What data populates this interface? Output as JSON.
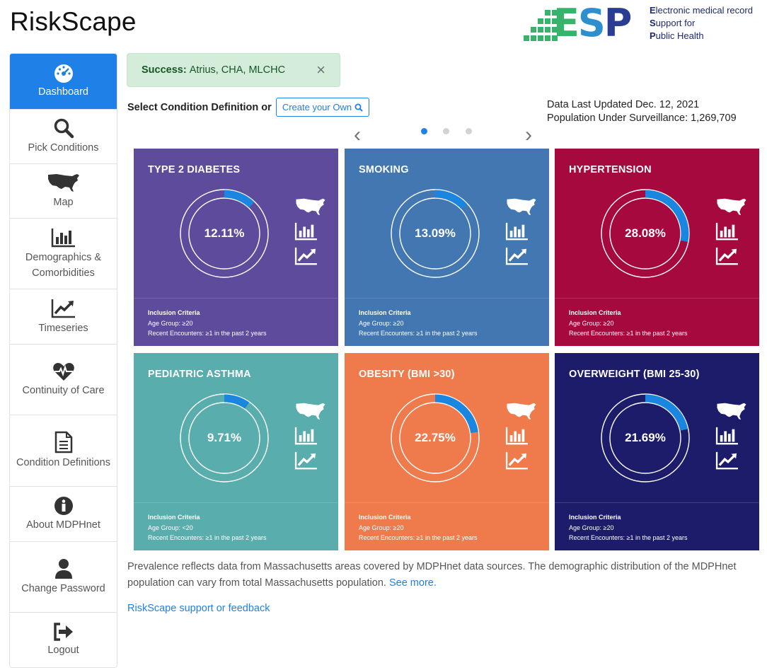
{
  "header": {
    "app_title": "RiskScape",
    "logo": {
      "letters": "ESP",
      "line1_initial": "E",
      "line1_rest": "lectronic medical record",
      "line2_initial": "S",
      "line2_rest": "upport for",
      "line3_initial": "P",
      "line3_rest": "ublic Health"
    }
  },
  "sidebar": {
    "items": [
      {
        "label": "Dashboard",
        "icon": "gauge-icon",
        "active": true
      },
      {
        "label": "Pick Conditions",
        "icon": "search-icon",
        "active": false
      },
      {
        "label": "Map",
        "icon": "usa-map-icon",
        "active": false
      },
      {
        "label": "Demographics & Comorbidities",
        "icon": "bar-chart-icon",
        "active": false
      },
      {
        "label": "Timeseries",
        "icon": "line-chart-icon",
        "active": false
      },
      {
        "label": "Continuity of Care",
        "icon": "heartbeat-icon",
        "active": false
      },
      {
        "label": "Condition Definitions",
        "icon": "document-icon",
        "active": false
      },
      {
        "label": "About MDPHnet",
        "icon": "info-icon",
        "active": false
      },
      {
        "label": "Change Password",
        "icon": "user-icon",
        "active": false
      },
      {
        "label": "Logout",
        "icon": "logout-icon",
        "active": false
      }
    ]
  },
  "alert": {
    "strong": "Success:",
    "text": "Atrius, CHA, MLCHC",
    "close": "×"
  },
  "select_row": {
    "label": "Select Condition Definition or",
    "button": "Create your Own"
  },
  "data_info": {
    "updated": "Data Last Updated Dec. 12, 2021",
    "population": "Population Under Surveillance: 1,269,709"
  },
  "carousel": {
    "current_page": 1,
    "page_count": 3,
    "prev": "‹",
    "next": "›"
  },
  "cards": [
    {
      "title": "TYPE 2 DIABETES",
      "value": "12.11%",
      "fraction": 0.1211,
      "color": "#5e4b9c",
      "criteria_title": "Inclusion Criteria",
      "age": "Age Group: ≥20",
      "encounters": "Recent Encounters: ≥1 in the past 2 years"
    },
    {
      "title": "SMOKING",
      "value": "13.09%",
      "fraction": 0.1309,
      "color": "#4277b1",
      "criteria_title": "Inclusion Criteria",
      "age": "Age Group: ≥20",
      "encounters": "Recent Encounters: ≥1 in the past 2 years"
    },
    {
      "title": "HYPERTENSION",
      "value": "28.08%",
      "fraction": 0.2808,
      "color": "#a6093e",
      "criteria_title": "Inclusion Criteria",
      "age": "Age Group: ≥20",
      "encounters": "Recent Encounters: ≥1 in the past 2 years"
    },
    {
      "title": "PEDIATRIC ASTHMA",
      "value": "9.71%",
      "fraction": 0.0971,
      "color": "#59adac",
      "criteria_title": "Inclusion Criteria",
      "age": "Age Group: <20",
      "encounters": "Recent Encounters: ≥1 in the past 2 years"
    },
    {
      "title": "OBESITY (BMI >30)",
      "value": "22.75%",
      "fraction": 0.2275,
      "color": "#ef7b4c",
      "criteria_title": "Inclusion Criteria",
      "age": "Age Group: ≥20",
      "encounters": "Recent Encounters: ≥1 in the past 2 years"
    },
    {
      "title": "OVERWEIGHT (BMI 25-30)",
      "value": "21.69%",
      "fraction": 0.2169,
      "color": "#1d1c6b",
      "criteria_title": "Inclusion Criteria",
      "age": "Age Group: ≥20",
      "encounters": "Recent Encounters: ≥1 in the past 2 years"
    }
  ],
  "colors": {
    "accent": "#1f80e8",
    "progress_arc": "#1a86e0"
  },
  "notes": {
    "text": "Prevalence reflects data from Massachusetts areas covered by MDPHnet data sources. The demographic distribution of the MDPHnet population can vary from total Massachusetts population.",
    "link": "See more."
  },
  "support_link": "RiskScape support or feedback"
}
